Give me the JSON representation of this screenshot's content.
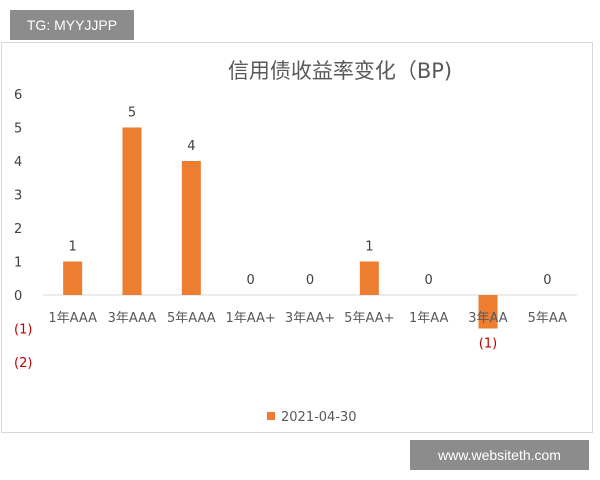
{
  "watermark_top": "TG: MYYJJPP",
  "watermark_bottom": "www.websiteth.com",
  "colors": {
    "bar": "#ed7d31",
    "axis": "#d9d9d9",
    "negative_text": "#c00000"
  },
  "chart_data": {
    "type": "bar",
    "title": "信用债收益率变化（BP)",
    "categories": [
      "1年AAA",
      "3年AAA",
      "5年AAA",
      "1年AA+",
      "3年AA+",
      "5年AA+",
      "1年AA",
      "3年AA",
      "5年AA"
    ],
    "series": [
      {
        "name": "2021-04-30",
        "values": [
          1,
          5,
          4,
          0,
          0,
          1,
          0,
          -1,
          0
        ]
      }
    ],
    "data_labels": [
      "1",
      "5",
      "4",
      "0",
      "0",
      "1",
      "0",
      "(1)",
      "0"
    ],
    "yticks": [
      "6",
      "5",
      "4",
      "3",
      "2",
      "1",
      "0",
      "(1)",
      "(2)"
    ],
    "ylim": [
      -2,
      6
    ],
    "xlabel": "",
    "ylabel": "",
    "grid": false,
    "legend_position": "bottom"
  }
}
